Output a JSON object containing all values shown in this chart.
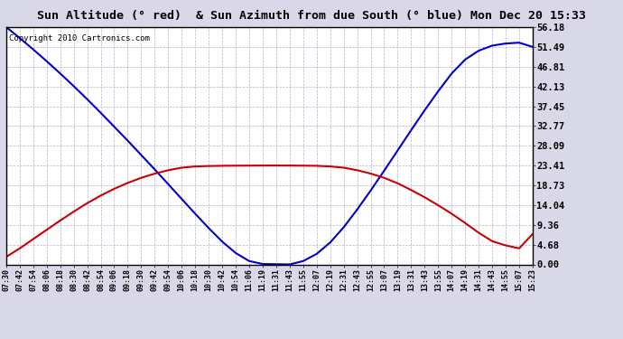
{
  "title": "Sun Altitude (° red)  & Sun Azimuth from due South (° blue) Mon Dec 20 15:33",
  "copyright": "Copyright 2010 Cartronics.com",
  "yticks": [
    0.0,
    4.68,
    9.36,
    14.04,
    18.73,
    23.41,
    28.09,
    32.77,
    37.45,
    42.13,
    46.81,
    51.49,
    56.18
  ],
  "ymax": 56.18,
  "ymin": 0.0,
  "background_color": "#d8d8e8",
  "plot_bg": "#ffffff",
  "blue_color": "#0000cc",
  "red_color": "#cc0000",
  "grid_color": "#aaaacc",
  "title_fontsize": 9.5,
  "x_labels": [
    "07:30",
    "07:42",
    "07:54",
    "08:06",
    "08:18",
    "08:30",
    "08:42",
    "08:54",
    "09:06",
    "09:18",
    "09:30",
    "09:42",
    "09:54",
    "10:06",
    "10:18",
    "10:30",
    "10:42",
    "10:54",
    "11:06",
    "11:19",
    "11:31",
    "11:43",
    "11:55",
    "12:07",
    "12:19",
    "12:31",
    "12:43",
    "12:55",
    "13:07",
    "13:19",
    "13:31",
    "13:43",
    "13:55",
    "14:07",
    "14:19",
    "14:31",
    "14:43",
    "14:55",
    "15:07",
    "15:23"
  ],
  "azimuth_values": [
    56.18,
    53.6,
    50.9,
    48.1,
    45.2,
    42.2,
    39.1,
    35.9,
    32.6,
    29.3,
    25.9,
    22.5,
    19.0,
    15.5,
    12.0,
    8.6,
    5.4,
    2.7,
    0.8,
    0.1,
    0.05,
    0.0,
    0.8,
    2.5,
    5.2,
    8.8,
    13.0,
    17.5,
    22.2,
    27.0,
    31.8,
    36.5,
    41.0,
    45.2,
    48.5,
    50.6,
    51.8,
    52.3,
    52.5,
    51.49
  ],
  "altitude_values": [
    1.8,
    3.8,
    6.0,
    8.2,
    10.4,
    12.5,
    14.5,
    16.3,
    17.9,
    19.3,
    20.5,
    21.5,
    22.3,
    22.9,
    23.2,
    23.3,
    23.35,
    23.38,
    23.4,
    23.41,
    23.42,
    23.41,
    23.38,
    23.35,
    23.2,
    22.9,
    22.3,
    21.5,
    20.5,
    19.2,
    17.6,
    15.9,
    14.0,
    12.0,
    9.8,
    7.5,
    5.5,
    4.5,
    3.8,
    7.2
  ]
}
